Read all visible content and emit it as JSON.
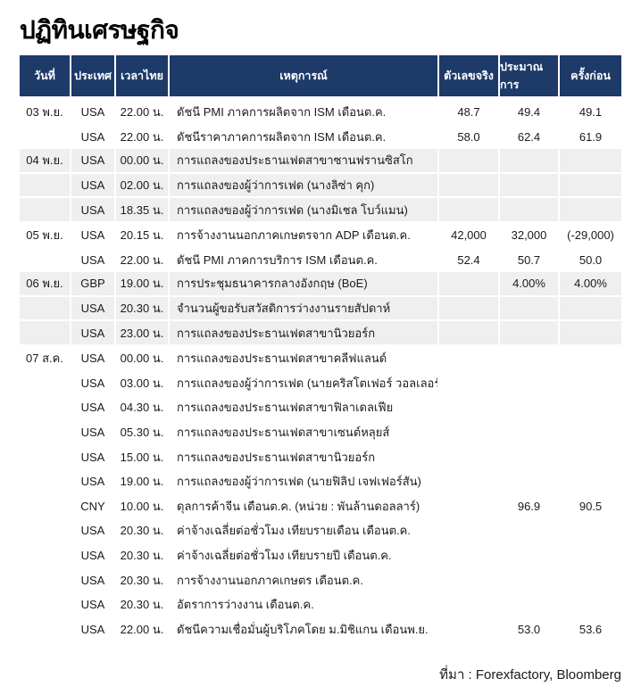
{
  "title": "ปฏิทินเศรษฐกิจ",
  "source": "ที่มา : Forexfactory, Bloomberg",
  "colors": {
    "header_bg": "#1d3a69",
    "stripe_bg": "#efefef",
    "text": "#1a1a1a"
  },
  "table": {
    "columns": [
      "วันที่",
      "ประเทศ",
      "เวลาไทย",
      "เหตุการณ์",
      "ตัวเลขจริง",
      "ประมาณการ",
      "ครั้งก่อน"
    ],
    "rows": [
      {
        "date": "03 พ.ย.",
        "country": "USA",
        "time": "22.00 น.",
        "event": "ดัชนี PMI ภาคการผลิตจาก ISM เดือนต.ค.",
        "actual": "48.7",
        "forecast": "49.4",
        "previous": "49.1"
      },
      {
        "date": "",
        "country": "USA",
        "time": "22.00 น.",
        "event": "ดัชนีราคาภาคการผลิตจาก ISM เดือนต.ค.",
        "actual": "58.0",
        "forecast": "62.4",
        "previous": "61.9"
      },
      {
        "date": "04 พ.ย.",
        "country": "USA",
        "time": "00.00 น.",
        "event": "การแถลงของประธานเฟดสาขาซานฟรานซิสโก",
        "actual": "",
        "forecast": "",
        "previous": ""
      },
      {
        "date": "",
        "country": "USA",
        "time": "02.00 น.",
        "event": "การแถลงของผู้ว่าการเฟด (นางลิซ่า คุก)",
        "actual": "",
        "forecast": "",
        "previous": ""
      },
      {
        "date": "",
        "country": "USA",
        "time": "18.35 น.",
        "event": "การแถลงของผู้ว่าการเฟด (นางมิเชล โบว์แมน)",
        "actual": "",
        "forecast": "",
        "previous": ""
      },
      {
        "date": "05 พ.ย.",
        "country": "USA",
        "time": "20.15 น.",
        "event": "การจ้างงานนอกภาคเกษตรจาก ADP เดือนต.ค.",
        "actual": "42,000",
        "forecast": "32,000",
        "previous": "(-29,000)"
      },
      {
        "date": "",
        "country": "USA",
        "time": "22.00 น.",
        "event": "ดัชนี PMI ภาคการบริการ ISM เดือนต.ค.",
        "actual": "52.4",
        "forecast": "50.7",
        "previous": "50.0"
      },
      {
        "date": "06 พ.ย.",
        "country": "GBP",
        "time": "19.00 น.",
        "event": "การประชุมธนาคารกลางอังกฤษ (BoE)",
        "actual": "",
        "forecast": "4.00%",
        "previous": "4.00%"
      },
      {
        "date": "",
        "country": "USA",
        "time": "20.30 น.",
        "event": "จำนวนผู้ขอรับสวัสดิการว่างงานรายสัปดาห์",
        "actual": "",
        "forecast": "",
        "previous": ""
      },
      {
        "date": "",
        "country": "USA",
        "time": "23.00 น.",
        "event": "การแถลงของประธานเฟดสาขานิวยอร์ก",
        "actual": "",
        "forecast": "",
        "previous": ""
      },
      {
        "date": "07 ส.ค.",
        "country": "USA",
        "time": "00.00 น.",
        "event": "การแถลงของประธานเฟดสาขาคลีฟแลนด์",
        "actual": "",
        "forecast": "",
        "previous": ""
      },
      {
        "date": "",
        "country": "USA",
        "time": "03.00 น.",
        "event": "การแถลงของผู้ว่าการเฟด (นายคริสโตเฟอร์ วอลเลอร์)",
        "actual": "",
        "forecast": "",
        "previous": ""
      },
      {
        "date": "",
        "country": "USA",
        "time": "04.30 น.",
        "event": "การแถลงของประธานเฟดสาขาฟิลาเดลเฟีย",
        "actual": "",
        "forecast": "",
        "previous": ""
      },
      {
        "date": "",
        "country": "USA",
        "time": "05.30 น.",
        "event": "การแถลงของประธานเฟดสาขาเซนต์หลุยส์",
        "actual": "",
        "forecast": "",
        "previous": ""
      },
      {
        "date": "",
        "country": "USA",
        "time": "15.00 น.",
        "event": "การแถลงของประธานเฟดสาขานิวยอร์ก",
        "actual": "",
        "forecast": "",
        "previous": ""
      },
      {
        "date": "",
        "country": "USA",
        "time": "19.00 น.",
        "event": "การแถลงของผู้ว่าการเฟด (นายฟิลิป เจฟเฟอร์สัน)",
        "actual": "",
        "forecast": "",
        "previous": ""
      },
      {
        "date": "",
        "country": "CNY",
        "time": "10.00 น.",
        "event": "ดุลการค้าจีน เดือนต.ค. (หน่วย : พันล้านดอลลาร์)",
        "actual": "",
        "forecast": "96.9",
        "previous": "90.5"
      },
      {
        "date": "",
        "country": "USA",
        "time": "20.30 น.",
        "event": "ค่าจ้างเฉลี่ยต่อชั่วโมง เทียบรายเดือน เดือนต.ค.",
        "actual": "",
        "forecast": "",
        "previous": ""
      },
      {
        "date": "",
        "country": "USA",
        "time": "20.30 น.",
        "event": "ค่าจ้างเฉลี่ยต่อชั่วโมง เทียบรายปี เดือนต.ค.",
        "actual": "",
        "forecast": "",
        "previous": ""
      },
      {
        "date": "",
        "country": "USA",
        "time": "20.30 น.",
        "event": "การจ้างงานนอกภาคเกษตร เดือนต.ค.",
        "actual": "",
        "forecast": "",
        "previous": ""
      },
      {
        "date": "",
        "country": "USA",
        "time": "20.30 น.",
        "event": "อัตราการว่างงาน เดือนต.ค.",
        "actual": "",
        "forecast": "",
        "previous": ""
      },
      {
        "date": "",
        "country": "USA",
        "time": "22.00 น.",
        "event": "ดัชนีความเชื่อมั่นผู้บริโภคโดย ม.มิชิแกน เดือนพ.ย.",
        "actual": "",
        "forecast": "53.0",
        "previous": "53.6"
      }
    ]
  }
}
